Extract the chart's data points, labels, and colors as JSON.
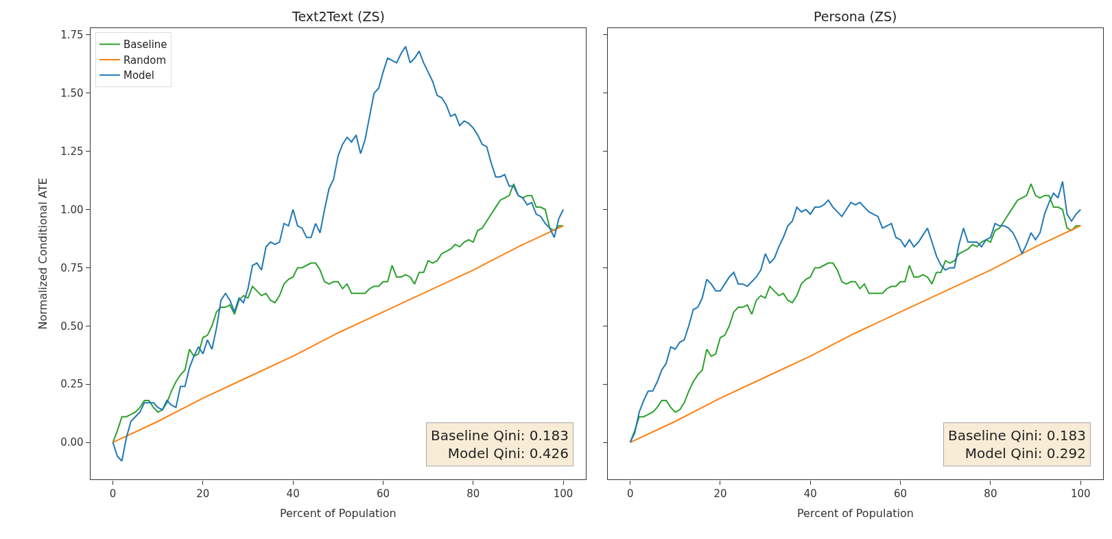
{
  "chart_data": [
    {
      "type": "line",
      "title": "Text2Text (ZS)",
      "xlabel": "Percent of Population",
      "ylabel": "Normalized Conditional ATE",
      "x": [
        0,
        1,
        2,
        3,
        4,
        5,
        6,
        7,
        8,
        9,
        10,
        11,
        12,
        13,
        14,
        15,
        16,
        17,
        18,
        19,
        20,
        21,
        22,
        23,
        24,
        25,
        26,
        27,
        28,
        29,
        30,
        31,
        32,
        33,
        34,
        35,
        36,
        37,
        38,
        39,
        40,
        41,
        42,
        43,
        44,
        45,
        46,
        47,
        48,
        49,
        50,
        51,
        52,
        53,
        54,
        55,
        56,
        57,
        58,
        59,
        60,
        61,
        62,
        63,
        64,
        65,
        66,
        67,
        68,
        69,
        70,
        71,
        72,
        73,
        74,
        75,
        76,
        77,
        78,
        79,
        80,
        81,
        82,
        83,
        84,
        85,
        86,
        87,
        88,
        89,
        90,
        91,
        92,
        93,
        94,
        95,
        96,
        97,
        98,
        99,
        100
      ],
      "series": [
        {
          "name": "Baseline",
          "color": "#2ca02c",
          "values": [
            0,
            0.05,
            0.11,
            0.11,
            0.12,
            0.13,
            0.15,
            0.18,
            0.18,
            0.15,
            0.13,
            0.14,
            0.17,
            0.22,
            0.26,
            0.29,
            0.31,
            0.4,
            0.37,
            0.38,
            0.45,
            0.46,
            0.5,
            0.56,
            0.58,
            0.58,
            0.59,
            0.55,
            0.61,
            0.63,
            0.62,
            0.67,
            0.65,
            0.63,
            0.64,
            0.61,
            0.6,
            0.63,
            0.68,
            0.7,
            0.71,
            0.75,
            0.75,
            0.76,
            0.77,
            0.77,
            0.74,
            0.69,
            0.68,
            0.69,
            0.69,
            0.66,
            0.68,
            0.64,
            0.64,
            0.64,
            0.64,
            0.66,
            0.67,
            0.67,
            0.69,
            0.69,
            0.76,
            0.71,
            0.71,
            0.72,
            0.71,
            0.68,
            0.73,
            0.73,
            0.78,
            0.77,
            0.78,
            0.81,
            0.82,
            0.83,
            0.85,
            0.84,
            0.86,
            0.87,
            0.86,
            0.91,
            0.92,
            0.95,
            0.98,
            1.01,
            1.04,
            1.05,
            1.06,
            1.11,
            1.06,
            1.05,
            1.06,
            1.06,
            1.01,
            1.01,
            1.0,
            0.92,
            0.91,
            0.93,
            0.93
          ]
        },
        {
          "name": "Random",
          "color": "#ff7f0e",
          "x": [
            0,
            10,
            20,
            30,
            40,
            50,
            60,
            70,
            80,
            90,
            100
          ],
          "values": [
            0,
            0.09,
            0.19,
            0.28,
            0.37,
            0.47,
            0.56,
            0.65,
            0.74,
            0.84,
            0.93
          ]
        },
        {
          "name": "Model",
          "color": "#1f77b4",
          "values": [
            0,
            -0.06,
            -0.08,
            0.02,
            0.09,
            0.11,
            0.13,
            0.17,
            0.17,
            0.17,
            0.15,
            0.14,
            0.18,
            0.16,
            0.15,
            0.24,
            0.24,
            0.32,
            0.37,
            0.41,
            0.38,
            0.44,
            0.4,
            0.49,
            0.61,
            0.64,
            0.61,
            0.56,
            0.62,
            0.6,
            0.66,
            0.76,
            0.77,
            0.74,
            0.84,
            0.86,
            0.85,
            0.86,
            0.94,
            0.93,
            1.0,
            0.93,
            0.92,
            0.88,
            0.88,
            0.94,
            0.9,
            1.0,
            1.09,
            1.13,
            1.23,
            1.28,
            1.31,
            1.29,
            1.32,
            1.24,
            1.3,
            1.4,
            1.5,
            1.52,
            1.59,
            1.65,
            1.64,
            1.63,
            1.67,
            1.7,
            1.63,
            1.65,
            1.68,
            1.63,
            1.59,
            1.55,
            1.49,
            1.48,
            1.45,
            1.4,
            1.41,
            1.36,
            1.38,
            1.37,
            1.35,
            1.32,
            1.28,
            1.27,
            1.2,
            1.14,
            1.14,
            1.15,
            1.1,
            1.1,
            1.06,
            1.05,
            1.02,
            1.03,
            0.98,
            0.97,
            0.94,
            0.92,
            0.88,
            0.96,
            1.0
          ]
        }
      ],
      "xlim": [
        -5,
        105
      ],
      "xticks": [
        0,
        20,
        40,
        60,
        80,
        100
      ],
      "ylim": [
        -0.16,
        1.78
      ],
      "yticks": [
        {
          "value": 0,
          "label": "0.00"
        },
        {
          "value": 0.25,
          "label": "0.25"
        },
        {
          "value": 0.5,
          "label": "0.50"
        },
        {
          "value": 0.75,
          "label": "0.75"
        },
        {
          "value": 1,
          "label": "1.00"
        },
        {
          "value": 1.25,
          "label": "1.25"
        },
        {
          "value": 1.5,
          "label": "1.50"
        },
        {
          "value": 1.75,
          "label": "1.75"
        }
      ],
      "legend": "top left",
      "marker": "none",
      "line_style": "solid",
      "annotations": [
        "Baseline Qini: 0.183\nModel Qini: 0.426"
      ]
    },
    {
      "type": "line",
      "title": "Persona (ZS)",
      "xlabel": "Percent of Population",
      "x": [
        0,
        1,
        2,
        3,
        4,
        5,
        6,
        7,
        8,
        9,
        10,
        11,
        12,
        13,
        14,
        15,
        16,
        17,
        18,
        19,
        20,
        21,
        22,
        23,
        24,
        25,
        26,
        27,
        28,
        29,
        30,
        31,
        32,
        33,
        34,
        35,
        36,
        37,
        38,
        39,
        40,
        41,
        42,
        43,
        44,
        45,
        46,
        47,
        48,
        49,
        50,
        51,
        52,
        53,
        54,
        55,
        56,
        57,
        58,
        59,
        60,
        61,
        62,
        63,
        64,
        65,
        66,
        67,
        68,
        69,
        70,
        71,
        72,
        73,
        74,
        75,
        76,
        77,
        78,
        79,
        80,
        81,
        82,
        83,
        84,
        85,
        86,
        87,
        88,
        89,
        90,
        91,
        92,
        93,
        94,
        95,
        96,
        97,
        98,
        99,
        100
      ],
      "series": [
        {
          "color": "#2ca02c",
          "values": [
            0,
            0.05,
            0.11,
            0.11,
            0.12,
            0.13,
            0.15,
            0.18,
            0.18,
            0.15,
            0.13,
            0.14,
            0.17,
            0.22,
            0.26,
            0.29,
            0.31,
            0.4,
            0.37,
            0.38,
            0.45,
            0.46,
            0.5,
            0.56,
            0.58,
            0.58,
            0.59,
            0.55,
            0.61,
            0.63,
            0.62,
            0.67,
            0.65,
            0.63,
            0.64,
            0.61,
            0.6,
            0.63,
            0.68,
            0.7,
            0.71,
            0.75,
            0.75,
            0.76,
            0.77,
            0.77,
            0.74,
            0.69,
            0.68,
            0.69,
            0.69,
            0.66,
            0.68,
            0.64,
            0.64,
            0.64,
            0.64,
            0.66,
            0.67,
            0.67,
            0.69,
            0.69,
            0.76,
            0.71,
            0.71,
            0.72,
            0.71,
            0.68,
            0.73,
            0.73,
            0.78,
            0.77,
            0.78,
            0.81,
            0.82,
            0.83,
            0.85,
            0.84,
            0.86,
            0.87,
            0.86,
            0.91,
            0.92,
            0.95,
            0.98,
            1.01,
            1.04,
            1.05,
            1.06,
            1.11,
            1.06,
            1.05,
            1.06,
            1.06,
            1.01,
            1.01,
            1.0,
            0.92,
            0.91,
            0.93,
            0.93
          ]
        },
        {
          "color": "#ff7f0e",
          "x": [
            0,
            10,
            20,
            30,
            40,
            50,
            60,
            70,
            80,
            90,
            100
          ],
          "values": [
            0,
            0.09,
            0.19,
            0.28,
            0.37,
            0.47,
            0.56,
            0.65,
            0.74,
            0.84,
            0.93
          ]
        },
        {
          "color": "#1f77b4",
          "values": [
            0,
            0.04,
            0.13,
            0.18,
            0.22,
            0.22,
            0.26,
            0.31,
            0.34,
            0.41,
            0.4,
            0.43,
            0.44,
            0.5,
            0.57,
            0.58,
            0.62,
            0.7,
            0.68,
            0.65,
            0.65,
            0.68,
            0.71,
            0.73,
            0.68,
            0.68,
            0.67,
            0.69,
            0.71,
            0.74,
            0.81,
            0.77,
            0.79,
            0.84,
            0.88,
            0.93,
            0.95,
            1.01,
            0.99,
            1.0,
            0.98,
            1.01,
            1.01,
            1.02,
            1.04,
            1.01,
            0.99,
            0.97,
            1.0,
            1.03,
            1.02,
            1.03,
            1.01,
            0.99,
            0.98,
            0.97,
            0.92,
            0.93,
            0.94,
            0.88,
            0.87,
            0.84,
            0.87,
            0.84,
            0.86,
            0.89,
            0.92,
            0.86,
            0.8,
            0.76,
            0.74,
            0.75,
            0.75,
            0.85,
            0.92,
            0.86,
            0.86,
            0.86,
            0.84,
            0.87,
            0.88,
            0.94,
            0.93,
            0.93,
            0.92,
            0.9,
            0.86,
            0.81,
            0.85,
            0.9,
            0.87,
            0.9,
            0.98,
            1.03,
            1.07,
            1.05,
            1.12,
            0.98,
            0.95,
            0.98,
            1.0
          ]
        }
      ],
      "xlim": [
        -5,
        105
      ],
      "xticks": [
        0,
        20,
        40,
        60,
        80,
        100
      ],
      "ylim": [
        -0.16,
        1.78
      ],
      "yticks": [
        {
          "value": 0,
          "label": null
        },
        {
          "value": 0.25,
          "label": null
        },
        {
          "value": 0.5,
          "label": null
        },
        {
          "value": 0.75,
          "label": null
        },
        {
          "value": 1,
          "label": null
        },
        {
          "value": 1.25,
          "label": null
        },
        {
          "value": 1.5,
          "label": null
        },
        {
          "value": 1.75,
          "label": null
        }
      ],
      "tick_labels": "x",
      "marker": "none",
      "line_style": "solid",
      "annotations": [
        "Baseline Qini: 0.183\nModel Qini: 0.292"
      ]
    }
  ]
}
